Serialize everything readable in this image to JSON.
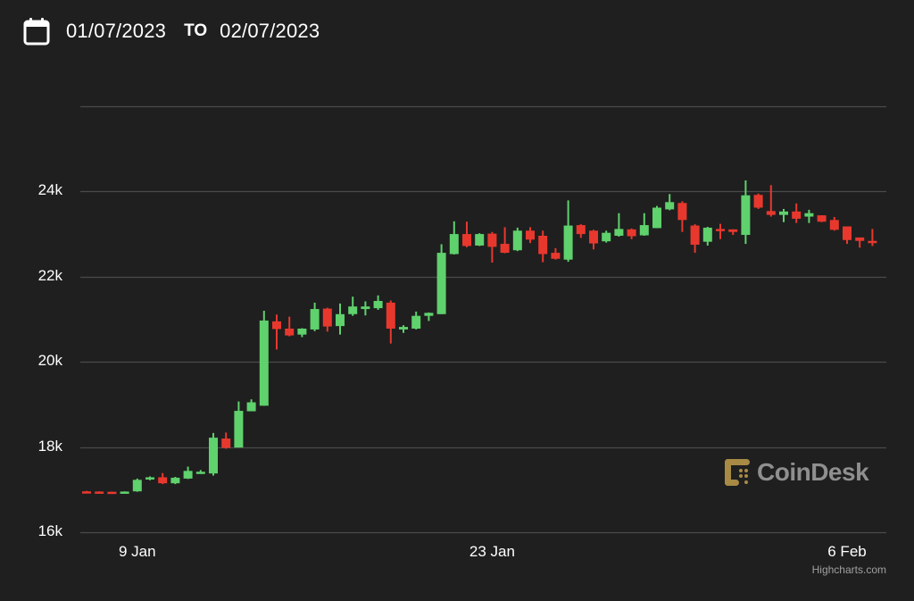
{
  "header": {
    "calendar_icon": "calendar-icon",
    "start_date": "01/07/2023",
    "to_label": "TO",
    "end_date": "02/07/2023"
  },
  "watermark": {
    "text": "CoinDesk",
    "logo_color": "#a88a45",
    "text_color": "#8f8f8f"
  },
  "credits": "Highcharts.com",
  "colors": {
    "background": "#1f1f1f",
    "up": "#5fd16d",
    "down": "#e8382e",
    "grid": "#4a4a4a"
  },
  "chart_data": {
    "type": "candlestick",
    "title": "",
    "xlabel": "",
    "ylabel": "",
    "ylim": [
      16000,
      26000
    ],
    "y_ticks": [
      {
        "value": 16000,
        "label": "16k"
      },
      {
        "value": 18000,
        "label": "18k"
      },
      {
        "value": 20000,
        "label": "20k"
      },
      {
        "value": 22000,
        "label": "22k"
      },
      {
        "value": 24000,
        "label": "24k"
      },
      {
        "value": 26000,
        "label": ""
      }
    ],
    "x_ticks": [
      {
        "index": 4,
        "label": "9 Jan"
      },
      {
        "index": 32,
        "label": "23 Jan"
      },
      {
        "index": 60,
        "label": "6 Feb"
      }
    ],
    "interval": "12h",
    "start": "2023-01-07",
    "grid": true,
    "legend": "none",
    "candles": [
      [
        16960,
        16970,
        16930,
        16940
      ],
      [
        16955,
        16960,
        16945,
        16948
      ],
      [
        16950,
        16955,
        16940,
        16943
      ],
      [
        16945,
        16960,
        16940,
        16955
      ],
      [
        16960,
        17260,
        16950,
        17230
      ],
      [
        17240,
        17310,
        17220,
        17290
      ],
      [
        17290,
        17390,
        17130,
        17150
      ],
      [
        17150,
        17300,
        17130,
        17280
      ],
      [
        17260,
        17540,
        17250,
        17440
      ],
      [
        17380,
        17460,
        17370,
        17420
      ],
      [
        17380,
        18330,
        17330,
        18220
      ],
      [
        18200,
        18340,
        17960,
        17980
      ],
      [
        17990,
        19070,
        17990,
        18850
      ],
      [
        18840,
        19120,
        18840,
        19050
      ],
      [
        18970,
        21200,
        18970,
        20970
      ],
      [
        20950,
        21110,
        20290,
        20770
      ],
      [
        20780,
        21060,
        20600,
        20620
      ],
      [
        20640,
        20790,
        20580,
        20780
      ],
      [
        20760,
        21390,
        20720,
        21240
      ],
      [
        21250,
        21270,
        20710,
        20830
      ],
      [
        20840,
        21370,
        20640,
        21120
      ],
      [
        21120,
        21530,
        21080,
        21300
      ],
      [
        21240,
        21420,
        21090,
        21300
      ],
      [
        21260,
        21560,
        21220,
        21430
      ],
      [
        21390,
        21440,
        20430,
        20780
      ],
      [
        20760,
        20860,
        20680,
        20820
      ],
      [
        20780,
        21180,
        20760,
        21080
      ],
      [
        21080,
        21160,
        20960,
        21150
      ],
      [
        21120,
        22760,
        21120,
        22560
      ],
      [
        22530,
        23300,
        22520,
        23000
      ],
      [
        23000,
        23290,
        22690,
        22720
      ],
      [
        22730,
        23020,
        22720,
        23000
      ],
      [
        23010,
        23050,
        22330,
        22700
      ],
      [
        22770,
        23160,
        22550,
        22560
      ],
      [
        22620,
        23150,
        22600,
        23080
      ],
      [
        23080,
        23160,
        22790,
        22870
      ],
      [
        22960,
        23080,
        22340,
        22530
      ],
      [
        22560,
        22670,
        22400,
        22420
      ],
      [
        22400,
        23790,
        22350,
        23200
      ],
      [
        23210,
        23230,
        22910,
        23000
      ],
      [
        23080,
        23100,
        22640,
        22780
      ],
      [
        22830,
        23080,
        22800,
        23030
      ],
      [
        22960,
        23490,
        22940,
        23120
      ],
      [
        23110,
        23130,
        22880,
        22950
      ],
      [
        22970,
        23490,
        22960,
        23210
      ],
      [
        23140,
        23660,
        23140,
        23620
      ],
      [
        23580,
        23940,
        23560,
        23750
      ],
      [
        23730,
        23770,
        23050,
        23330
      ],
      [
        23200,
        23230,
        22560,
        22750
      ],
      [
        22820,
        23170,
        22730,
        23150
      ],
      [
        23120,
        23240,
        22880,
        23070
      ],
      [
        23110,
        23110,
        22980,
        23050
      ],
      [
        22980,
        24260,
        22770,
        23910
      ],
      [
        23920,
        23950,
        23590,
        23620
      ],
      [
        23540,
        24150,
        23410,
        23450
      ],
      [
        23450,
        23590,
        23280,
        23530
      ],
      [
        23530,
        23720,
        23260,
        23360
      ],
      [
        23410,
        23570,
        23260,
        23490
      ],
      [
        23440,
        23440,
        23280,
        23290
      ],
      [
        23330,
        23400,
        23080,
        23100
      ],
      [
        23180,
        23180,
        22770,
        22860
      ],
      [
        22920,
        22920,
        22680,
        22840
      ],
      [
        22840,
        23120,
        22720,
        22820
      ]
    ]
  }
}
